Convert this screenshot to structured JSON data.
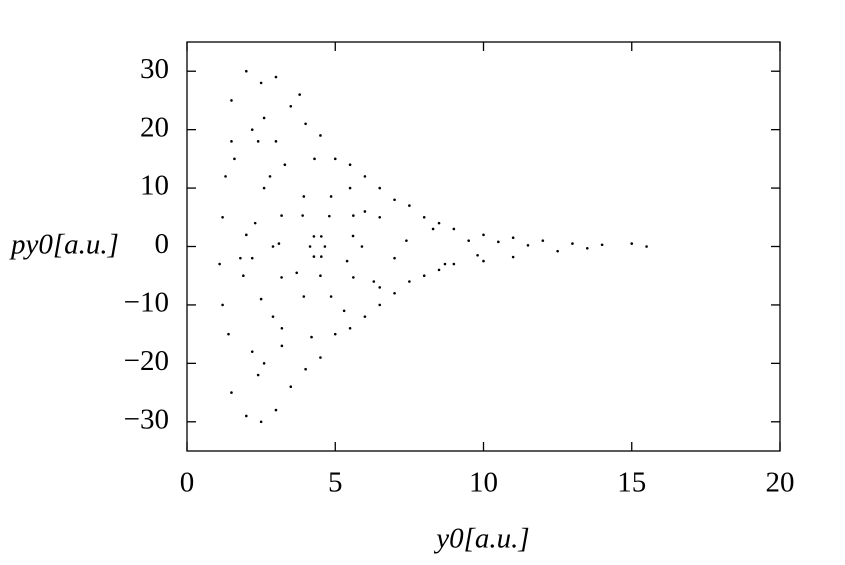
{
  "chart_data": {
    "type": "scatter",
    "xlabel": "y0[a.u.]",
    "ylabel": "py0[a.u.]",
    "color": "#000000",
    "x": [
      1.5,
      2,
      2.5,
      3,
      2.2,
      2.6,
      2.4,
      3.5,
      4,
      4.5,
      5,
      5.5,
      6,
      6.5,
      7,
      7.5,
      8,
      8.5,
      9,
      10,
      11,
      12,
      13,
      14,
      15,
      15.5,
      12.5,
      11,
      10,
      9,
      8.5,
      8,
      7.5,
      7,
      6.5,
      6,
      5.5,
      5,
      4.5,
      4,
      3.5,
      3,
      2.5,
      2,
      1.5,
      2.4,
      2.6,
      2.2,
      1.2,
      1.1,
      1.2,
      1.3,
      1.5,
      1.8,
      2,
      1.9,
      1.4,
      1.6,
      3,
      3.2,
      2.8,
      2.9,
      8.3,
      8.7,
      9.5,
      9.8,
      11.5,
      10.5,
      13.5,
      6,
      6.5,
      3.8,
      4.65,
      4.53,
      4.28,
      4.15,
      4.28,
      4.53,
      5.9,
      5.61,
      4.86,
      3.94,
      3.19,
      2.9,
      3.19,
      3.94,
      4.86,
      5.61,
      7.4,
      6.5,
      5.5,
      4.3,
      3.3,
      2.6,
      2.3,
      2.2,
      2.5,
      3.2,
      4.2,
      5.3,
      6.3,
      7,
      3.9,
      4.8,
      5.6,
      5.4,
      4.5,
      3.7,
      3.1
    ],
    "values": [
      25,
      30,
      28,
      29,
      20,
      22,
      18,
      24,
      21,
      19,
      15,
      14,
      12,
      10,
      8,
      7,
      5,
      4,
      3,
      2,
      1.5,
      1,
      0.5,
      0.3,
      0.5,
      0,
      -0.8,
      -1.8,
      -2.5,
      -3,
      -4,
      -5,
      -6,
      -8,
      -10,
      -12,
      -14,
      -15,
      -19,
      -21,
      -24,
      -28,
      -30,
      -29,
      -25,
      -22,
      -20,
      -18,
      -10,
      -3,
      5,
      12,
      18,
      -2,
      2,
      -5,
      -15,
      15,
      18,
      -17,
      12,
      -12,
      3,
      -3,
      1,
      -1.5,
      0.2,
      0.8,
      -0.3,
      6,
      -7,
      26,
      0,
      1.73,
      1.73,
      0,
      -1.73,
      -1.73,
      0,
      5.29,
      8.56,
      8.56,
      5.29,
      0,
      -5.29,
      -8.56,
      -8.56,
      -5.29,
      1,
      5,
      10,
      15,
      14,
      10,
      4,
      -2,
      -9,
      -14,
      -15.5,
      -11,
      -6,
      -2,
      5.3,
      5.2,
      1.8,
      -2.5,
      -5,
      -4.5,
      0.5
    ],
    "xlim": [
      0,
      20
    ],
    "xticks": [
      0,
      5,
      10,
      15,
      20
    ],
    "ylim": [
      -35,
      35
    ],
    "yticks": [
      {
        "value": -30,
        "label": "−30"
      },
      {
        "value": -20,
        "label": "−20"
      },
      {
        "value": -10,
        "label": "−10"
      },
      0,
      10,
      20,
      30
    ]
  }
}
